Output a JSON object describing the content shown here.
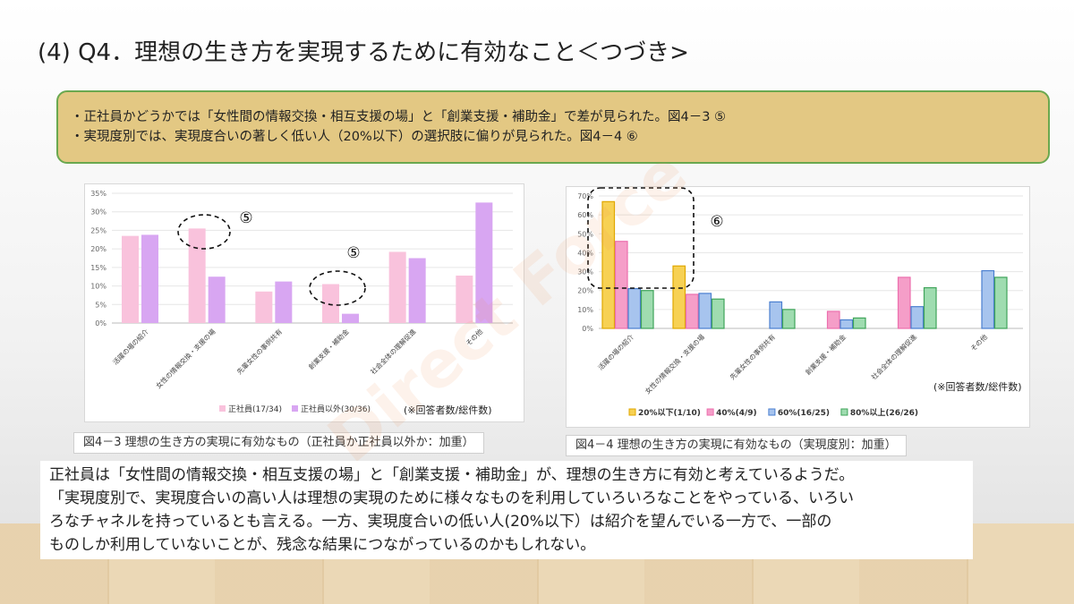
{
  "slide": {
    "title": "(4) Q4．理想の生き方を実現するために有効なこと＜つづき>",
    "summary": [
      "・正社員かどうかでは「女性間の情報交換・相互支援の場」と「創業支援・補助金」で差が見られた。図4－3 ⑤",
      "・実現度別では、実現度合いの著しく低い人（20%以下）の選択肢に偏りが見られた。図4－4 ⑥"
    ],
    "caption_left": "図4－3 理想の生き方の実現に有効なもの（正社員か正社員以外か：加重）",
    "caption_right": "図4－4 理想の生き方の実現に有効なもの（実現度別：加重）",
    "note": [
      "正社員は「女性間の情報交換・相互支援の場」と「創業支援・補助金」が、理想の生き方に有効と考えているようだ。",
      "「実現度別で、実現度合いの高い人は理想の実現のために様々なものを利用していろいろなことをやっている、いろい",
      "ろなチャネルを持っているとも言える。一方、実現度合いの低い人(20%以下）は紹介を望んでいる一方で、一部の",
      "ものしか利用していないことが、残念な結果につながっているのかもしれない。"
    ],
    "watermark": "Direct Force",
    "colors": {
      "summary_bg": "#e3c883",
      "summary_border": "#6aa84f",
      "regular": "#f9c2dc",
      "nonregular": "#d8a6f2",
      "p20": "#f7d154",
      "p40": "#f59ec8",
      "p60": "#a7c4ee",
      "p80": "#9fdcb0"
    }
  },
  "chart_data": [
    {
      "type": "bar",
      "categories": [
        "活躍の場の紹介",
        "女性の情報交換・支援の場",
        "先輩女性の事例共有",
        "創業支援・補助金",
        "社会全体の理解促進",
        "その他"
      ],
      "series": [
        {
          "name": "正社員(17/34)",
          "values": [
            23.5,
            25.5,
            8.5,
            10.5,
            19.2,
            12.8
          ],
          "color": "#f9c2dc"
        },
        {
          "name": "正社員以外(30/36)",
          "values": [
            23.8,
            12.5,
            11.2,
            2.5,
            17.5,
            32.5
          ],
          "color": "#d8a6f2"
        }
      ],
      "yticks": [
        "0%",
        "5%",
        "10%",
        "15%",
        "20%",
        "25%",
        "30%",
        "35%"
      ],
      "ylim": [
        0,
        35
      ],
      "legend_note": "(※回答者数/総件数)",
      "annotations": [
        "⑤",
        "⑤"
      ],
      "legend": "bottom-right"
    },
    {
      "type": "bar",
      "categories": [
        "活躍の場の紹介",
        "女性の情報交換・支援の場",
        "先輩女性の事例共有",
        "創業支援・補助金",
        "社会全体の理解促進",
        "その他"
      ],
      "series": [
        {
          "name": "20%以下(1/10)",
          "values": [
            67,
            33,
            0,
            0,
            0,
            0
          ],
          "color": "#f7d154",
          "stroke": "#e0a800"
        },
        {
          "name": "40%(4/9)",
          "values": [
            46,
            18,
            0,
            9,
            27,
            0
          ],
          "color": "#f59ec8",
          "stroke": "#ec6fae"
        },
        {
          "name": "60%(16/25)",
          "values": [
            21,
            18.5,
            14,
            4.5,
            11.5,
            30.5
          ],
          "color": "#a7c4ee",
          "stroke": "#4a7fd0"
        },
        {
          "name": "80%以上(26/26)",
          "values": [
            20,
            15.5,
            10,
            5.5,
            21.5,
            27
          ],
          "color": "#9fdcb0",
          "stroke": "#3fa45a"
        }
      ],
      "yticks": [
        "0%",
        "10%",
        "20%",
        "30%",
        "40%",
        "50%",
        "60%",
        "70%"
      ],
      "ylim": [
        0,
        70
      ],
      "legend_note": "(※回答者数/総件数)",
      "annotations": [
        "⑥"
      ],
      "legend": "bottom"
    }
  ]
}
